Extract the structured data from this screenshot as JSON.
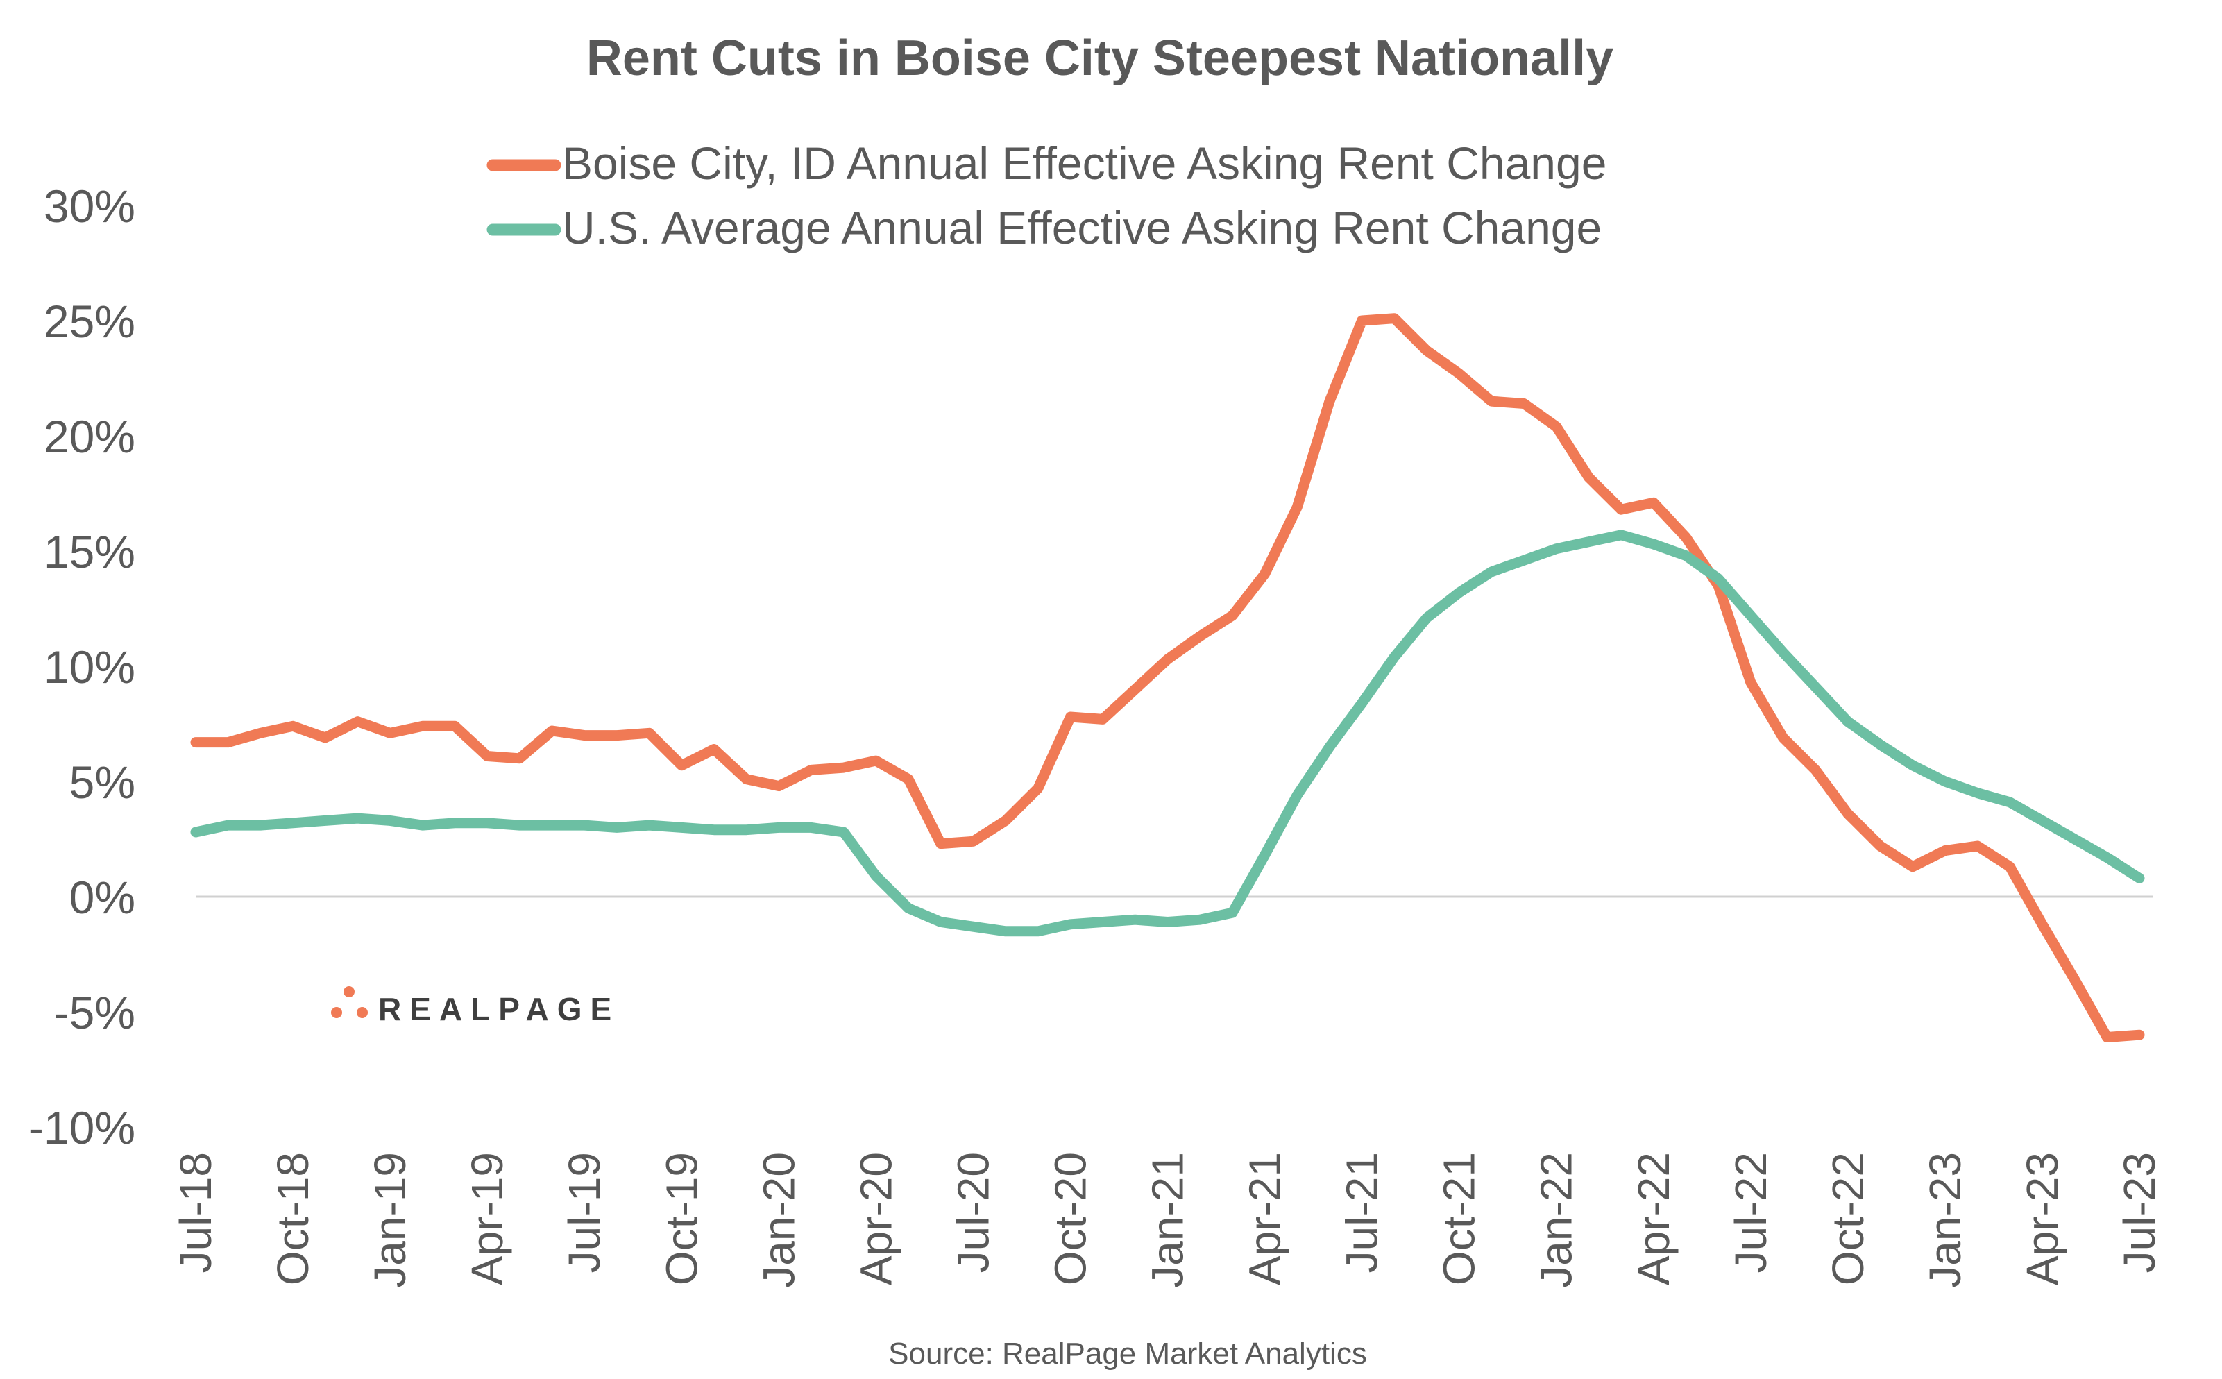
{
  "chart_data": {
    "type": "line",
    "title": "Rent Cuts in Boise City Steepest Nationally",
    "source": "Source: RealPage Market Analytics",
    "logo": "REALPAGE",
    "ylim": [
      -10,
      30
    ],
    "yticks": [
      -10,
      -5,
      0,
      5,
      10,
      15,
      20,
      25,
      30
    ],
    "ytick_labels": [
      "-10%",
      "-5%",
      "0%",
      "5%",
      "10%",
      "15%",
      "20%",
      "25%",
      "30%"
    ],
    "x": [
      "Jul-18",
      "Aug-18",
      "Sep-18",
      "Oct-18",
      "Nov-18",
      "Dec-18",
      "Jan-19",
      "Feb-19",
      "Mar-19",
      "Apr-19",
      "May-19",
      "Jun-19",
      "Jul-19",
      "Aug-19",
      "Sep-19",
      "Oct-19",
      "Nov-19",
      "Dec-19",
      "Jan-20",
      "Feb-20",
      "Mar-20",
      "Apr-20",
      "May-20",
      "Jun-20",
      "Jul-20",
      "Aug-20",
      "Sep-20",
      "Oct-20",
      "Nov-20",
      "Dec-20",
      "Jan-21",
      "Feb-21",
      "Mar-21",
      "Apr-21",
      "May-21",
      "Jun-21",
      "Jul-21",
      "Aug-21",
      "Sep-21",
      "Oct-21",
      "Nov-21",
      "Dec-21",
      "Jan-22",
      "Feb-22",
      "Mar-22",
      "Apr-22",
      "May-22",
      "Jun-22",
      "Jul-22",
      "Aug-22",
      "Sep-22",
      "Oct-22",
      "Nov-22",
      "Dec-22",
      "Jan-23",
      "Feb-23",
      "Mar-23",
      "Apr-23",
      "May-23",
      "Jun-23",
      "Jul-23"
    ],
    "xtick_labels": [
      "Jul-18",
      "Oct-18",
      "Jan-19",
      "Apr-19",
      "Jul-19",
      "Oct-19",
      "Jan-20",
      "Apr-20",
      "Jul-20",
      "Oct-20",
      "Jan-21",
      "Apr-21",
      "Jul-21",
      "Oct-21",
      "Jan-22",
      "Apr-22",
      "Jul-22",
      "Oct-22",
      "Jan-23",
      "Apr-23",
      "Jul-23"
    ],
    "xtick_step": 3,
    "series": [
      {
        "name": "Boise City, ID Annual Effective Asking Rent Change",
        "color": "#f07a55",
        "values": [
          6.7,
          6.7,
          7.1,
          7.4,
          6.9,
          7.6,
          7.1,
          7.4,
          7.4,
          6.1,
          6.0,
          7.2,
          7.0,
          7.0,
          7.1,
          5.7,
          6.4,
          5.1,
          4.8,
          5.5,
          5.6,
          5.9,
          5.1,
          2.3,
          2.4,
          3.3,
          4.7,
          7.8,
          7.7,
          9.0,
          10.3,
          11.3,
          12.2,
          14.0,
          16.9,
          21.5,
          25.0,
          25.1,
          23.7,
          22.7,
          21.5,
          21.4,
          20.4,
          18.2,
          16.8,
          17.1,
          15.6,
          13.5,
          9.3,
          6.9,
          5.5,
          3.6,
          2.2,
          1.3,
          2.0,
          2.2,
          1.3,
          -1.2,
          -3.6,
          -6.1,
          -6.0
        ]
      },
      {
        "name": "U.S. Average Annual Effective Asking Rent Change",
        "color": "#6cbfa3",
        "values": [
          2.8,
          3.1,
          3.1,
          3.2,
          3.3,
          3.4,
          3.3,
          3.1,
          3.2,
          3.2,
          3.1,
          3.1,
          3.1,
          3.0,
          3.1,
          3.0,
          2.9,
          2.9,
          3.0,
          3.0,
          2.8,
          0.9,
          -0.5,
          -1.1,
          -1.3,
          -1.5,
          -1.5,
          -1.2,
          -1.1,
          -1.0,
          -1.1,
          -1.0,
          -0.7,
          1.8,
          4.4,
          6.5,
          8.4,
          10.4,
          12.1,
          13.2,
          14.1,
          14.6,
          15.1,
          15.4,
          15.7,
          15.3,
          14.8,
          13.8,
          12.2,
          10.6,
          9.1,
          7.6,
          6.6,
          5.7,
          5.0,
          4.5,
          4.1,
          3.3,
          2.5,
          1.7,
          0.8
        ]
      }
    ]
  }
}
